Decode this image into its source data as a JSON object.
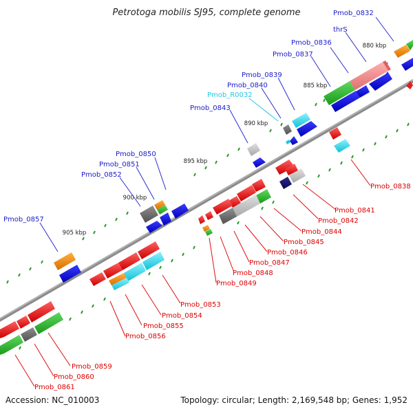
{
  "title": "Petrotoga mobilis SJ95, complete genome",
  "footer": {
    "accession": "Accession: NC_010003",
    "topology": "Topology: circular; Length: 2,169,548 bp; Genes: 1,952"
  },
  "scale_labels": [
    "880 kbp",
    "885 kbp",
    "890 kbp",
    "895 kbp",
    "900 kbp",
    "905 kbp"
  ],
  "colors": {
    "plus_strand_label": "#1a1acc",
    "minus_strand_label": "#dd0000",
    "rna_label": "#22c8e0",
    "backbone": "#8c8c8c"
  },
  "top_labels": [
    "Pmob_0832",
    "thrS",
    "Pmob_0836",
    "Pmob_0837",
    "Pmob_0839",
    "Pmob_0840",
    "Pmob_R0032",
    "Pmob_0843",
    "Pmob_0850",
    "Pmob_0851",
    "Pmob_0852",
    "Pmob_0857"
  ],
  "bottom_labels": [
    "Pmob_0838",
    "Pmob_0841",
    "Pmob_0842",
    "Pmob_0844",
    "Pmob_0845",
    "Pmob_0846",
    "Pmob_0847",
    "Pmob_0848",
    "Pmob_0849",
    "Pmob_0853",
    "Pmob_0854",
    "Pmob_0855",
    "Pmob_0856",
    "Pmob_0859",
    "Pmob_0860",
    "Pmob_0861"
  ]
}
